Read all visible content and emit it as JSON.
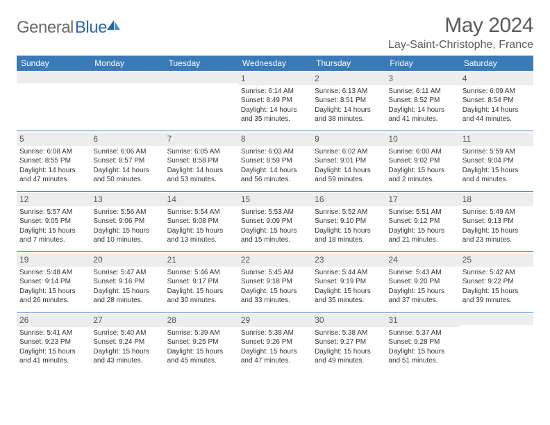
{
  "logo": {
    "text1": "General",
    "text2": "Blue"
  },
  "title": "May 2024",
  "location": "Lay-Saint-Christophe, France",
  "colors": {
    "header_bg": "#3a7ab8",
    "header_text": "#ffffff",
    "daynum_bg": "#ededed",
    "border": "#3a7ab8",
    "logo_gray": "#6b6b6b",
    "logo_blue": "#2968a8",
    "title_color": "#5a5a5a"
  },
  "dayNames": [
    "Sunday",
    "Monday",
    "Tuesday",
    "Wednesday",
    "Thursday",
    "Friday",
    "Saturday"
  ],
  "weeks": [
    [
      null,
      null,
      null,
      {
        "n": "1",
        "sr": "Sunrise: 6:14 AM",
        "ss": "Sunset: 8:49 PM",
        "d1": "Daylight: 14 hours",
        "d2": "and 35 minutes."
      },
      {
        "n": "2",
        "sr": "Sunrise: 6:13 AM",
        "ss": "Sunset: 8:51 PM",
        "d1": "Daylight: 14 hours",
        "d2": "and 38 minutes."
      },
      {
        "n": "3",
        "sr": "Sunrise: 6:11 AM",
        "ss": "Sunset: 8:52 PM",
        "d1": "Daylight: 14 hours",
        "d2": "and 41 minutes."
      },
      {
        "n": "4",
        "sr": "Sunrise: 6:09 AM",
        "ss": "Sunset: 8:54 PM",
        "d1": "Daylight: 14 hours",
        "d2": "and 44 minutes."
      }
    ],
    [
      {
        "n": "5",
        "sr": "Sunrise: 6:08 AM",
        "ss": "Sunset: 8:55 PM",
        "d1": "Daylight: 14 hours",
        "d2": "and 47 minutes."
      },
      {
        "n": "6",
        "sr": "Sunrise: 6:06 AM",
        "ss": "Sunset: 8:57 PM",
        "d1": "Daylight: 14 hours",
        "d2": "and 50 minutes."
      },
      {
        "n": "7",
        "sr": "Sunrise: 6:05 AM",
        "ss": "Sunset: 8:58 PM",
        "d1": "Daylight: 14 hours",
        "d2": "and 53 minutes."
      },
      {
        "n": "8",
        "sr": "Sunrise: 6:03 AM",
        "ss": "Sunset: 8:59 PM",
        "d1": "Daylight: 14 hours",
        "d2": "and 56 minutes."
      },
      {
        "n": "9",
        "sr": "Sunrise: 6:02 AM",
        "ss": "Sunset: 9:01 PM",
        "d1": "Daylight: 14 hours",
        "d2": "and 59 minutes."
      },
      {
        "n": "10",
        "sr": "Sunrise: 6:00 AM",
        "ss": "Sunset: 9:02 PM",
        "d1": "Daylight: 15 hours",
        "d2": "and 2 minutes."
      },
      {
        "n": "11",
        "sr": "Sunrise: 5:59 AM",
        "ss": "Sunset: 9:04 PM",
        "d1": "Daylight: 15 hours",
        "d2": "and 4 minutes."
      }
    ],
    [
      {
        "n": "12",
        "sr": "Sunrise: 5:57 AM",
        "ss": "Sunset: 9:05 PM",
        "d1": "Daylight: 15 hours",
        "d2": "and 7 minutes."
      },
      {
        "n": "13",
        "sr": "Sunrise: 5:56 AM",
        "ss": "Sunset: 9:06 PM",
        "d1": "Daylight: 15 hours",
        "d2": "and 10 minutes."
      },
      {
        "n": "14",
        "sr": "Sunrise: 5:54 AM",
        "ss": "Sunset: 9:08 PM",
        "d1": "Daylight: 15 hours",
        "d2": "and 13 minutes."
      },
      {
        "n": "15",
        "sr": "Sunrise: 5:53 AM",
        "ss": "Sunset: 9:09 PM",
        "d1": "Daylight: 15 hours",
        "d2": "and 15 minutes."
      },
      {
        "n": "16",
        "sr": "Sunrise: 5:52 AM",
        "ss": "Sunset: 9:10 PM",
        "d1": "Daylight: 15 hours",
        "d2": "and 18 minutes."
      },
      {
        "n": "17",
        "sr": "Sunrise: 5:51 AM",
        "ss": "Sunset: 9:12 PM",
        "d1": "Daylight: 15 hours",
        "d2": "and 21 minutes."
      },
      {
        "n": "18",
        "sr": "Sunrise: 5:49 AM",
        "ss": "Sunset: 9:13 PM",
        "d1": "Daylight: 15 hours",
        "d2": "and 23 minutes."
      }
    ],
    [
      {
        "n": "19",
        "sr": "Sunrise: 5:48 AM",
        "ss": "Sunset: 9:14 PM",
        "d1": "Daylight: 15 hours",
        "d2": "and 26 minutes."
      },
      {
        "n": "20",
        "sr": "Sunrise: 5:47 AM",
        "ss": "Sunset: 9:16 PM",
        "d1": "Daylight: 15 hours",
        "d2": "and 28 minutes."
      },
      {
        "n": "21",
        "sr": "Sunrise: 5:46 AM",
        "ss": "Sunset: 9:17 PM",
        "d1": "Daylight: 15 hours",
        "d2": "and 30 minutes."
      },
      {
        "n": "22",
        "sr": "Sunrise: 5:45 AM",
        "ss": "Sunset: 9:18 PM",
        "d1": "Daylight: 15 hours",
        "d2": "and 33 minutes."
      },
      {
        "n": "23",
        "sr": "Sunrise: 5:44 AM",
        "ss": "Sunset: 9:19 PM",
        "d1": "Daylight: 15 hours",
        "d2": "and 35 minutes."
      },
      {
        "n": "24",
        "sr": "Sunrise: 5:43 AM",
        "ss": "Sunset: 9:20 PM",
        "d1": "Daylight: 15 hours",
        "d2": "and 37 minutes."
      },
      {
        "n": "25",
        "sr": "Sunrise: 5:42 AM",
        "ss": "Sunset: 9:22 PM",
        "d1": "Daylight: 15 hours",
        "d2": "and 39 minutes."
      }
    ],
    [
      {
        "n": "26",
        "sr": "Sunrise: 5:41 AM",
        "ss": "Sunset: 9:23 PM",
        "d1": "Daylight: 15 hours",
        "d2": "and 41 minutes."
      },
      {
        "n": "27",
        "sr": "Sunrise: 5:40 AM",
        "ss": "Sunset: 9:24 PM",
        "d1": "Daylight: 15 hours",
        "d2": "and 43 minutes."
      },
      {
        "n": "28",
        "sr": "Sunrise: 5:39 AM",
        "ss": "Sunset: 9:25 PM",
        "d1": "Daylight: 15 hours",
        "d2": "and 45 minutes."
      },
      {
        "n": "29",
        "sr": "Sunrise: 5:38 AM",
        "ss": "Sunset: 9:26 PM",
        "d1": "Daylight: 15 hours",
        "d2": "and 47 minutes."
      },
      {
        "n": "30",
        "sr": "Sunrise: 5:38 AM",
        "ss": "Sunset: 9:27 PM",
        "d1": "Daylight: 15 hours",
        "d2": "and 49 minutes."
      },
      {
        "n": "31",
        "sr": "Sunrise: 5:37 AM",
        "ss": "Sunset: 9:28 PM",
        "d1": "Daylight: 15 hours",
        "d2": "and 51 minutes."
      },
      null
    ]
  ]
}
